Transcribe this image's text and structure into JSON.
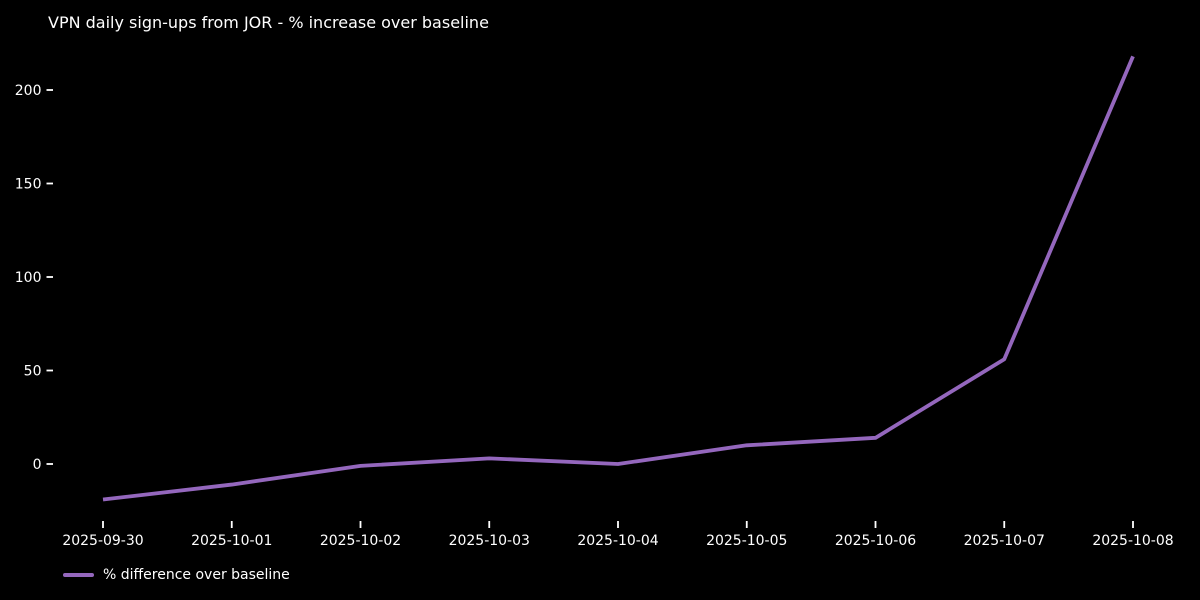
{
  "chart_data": {
    "type": "line",
    "title": "VPN daily sign-ups from JOR - % increase over baseline",
    "x": [
      "2025-09-30",
      "2025-10-01",
      "2025-10-02",
      "2025-10-03",
      "2025-10-04",
      "2025-10-05",
      "2025-10-06",
      "2025-10-07",
      "2025-10-08"
    ],
    "series": [
      {
        "name": "% difference over baseline",
        "values": [
          -19,
          -11,
          -1,
          3,
          0,
          10,
          14,
          56,
          218
        ],
        "color": "#9467bd"
      }
    ],
    "xlabel": "",
    "ylabel": "",
    "yticks": [
      0,
      50,
      100,
      150,
      200
    ],
    "ylim": [
      -31,
      230
    ],
    "grid": false,
    "legend_position": "lower-left",
    "background_color": "#000000",
    "text_color": "#ffffff"
  }
}
